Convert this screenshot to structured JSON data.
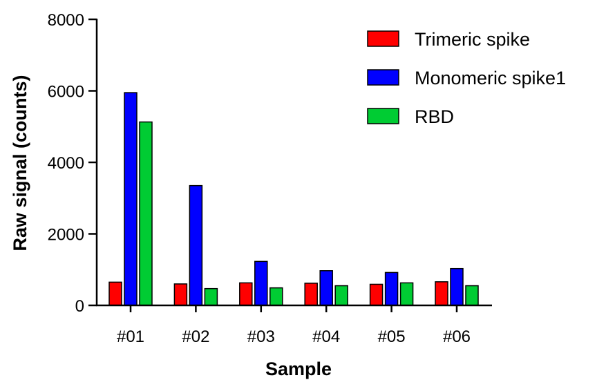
{
  "chart_data": {
    "type": "bar",
    "xlabel": "Sample",
    "ylabel": "Raw signal (counts)",
    "categories": [
      "#01",
      "#02",
      "#03",
      "#04",
      "#05",
      "#06"
    ],
    "ylim": [
      0,
      8000
    ],
    "yticks": [
      0,
      2000,
      4000,
      6000,
      8000
    ],
    "legend_position": "top-right",
    "grid": false,
    "series": [
      {
        "name": "Trimeric spike",
        "color": "#ff0000",
        "values": [
          650,
          600,
          630,
          620,
          590,
          660
        ]
      },
      {
        "name": "Monomeric spike1",
        "color": "#0000ff",
        "values": [
          5950,
          3350,
          1230,
          970,
          920,
          1030
        ]
      },
      {
        "name": "RBD",
        "color": "#00cc33",
        "values": [
          5130,
          470,
          490,
          550,
          630,
          550
        ]
      }
    ]
  }
}
